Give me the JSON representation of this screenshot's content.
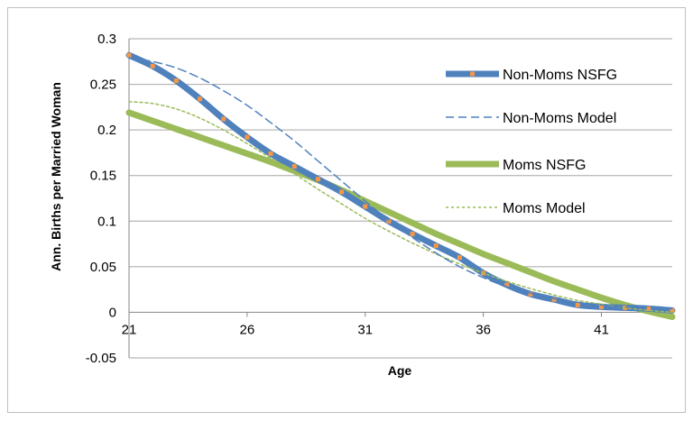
{
  "chart_data": {
    "type": "line",
    "xlabel": "Age",
    "ylabel": "Ann. Births per Married Woman",
    "xlim": [
      21,
      44
    ],
    "ylim": [
      -0.05,
      0.3
    ],
    "xticks": [
      21,
      26,
      31,
      36,
      41
    ],
    "yticks": [
      -0.05,
      0,
      0.05,
      0.1,
      0.15,
      0.2,
      0.25,
      0.3
    ],
    "ytick_labels": [
      "-0.05",
      "0",
      "0.05",
      "0.1",
      "0.15",
      "0.2",
      "0.25",
      "0.3"
    ],
    "grid": "horizontal",
    "legend_position": "right",
    "series": [
      {
        "name": "Non-Moms NSFG",
        "style": "thick-solid-with-markers",
        "color": "#4f81bd",
        "marker_color": "#f79646",
        "x": [
          21,
          22,
          23,
          24,
          25,
          26,
          27,
          28,
          29,
          30,
          31,
          32,
          33,
          34,
          35,
          36,
          37,
          38,
          39,
          40,
          41,
          42,
          43,
          44
        ],
        "y": [
          0.282,
          0.27,
          0.254,
          0.234,
          0.212,
          0.192,
          0.174,
          0.16,
          0.146,
          0.132,
          0.116,
          0.1,
          0.086,
          0.073,
          0.06,
          0.043,
          0.03,
          0.02,
          0.014,
          0.008,
          0.006,
          0.005,
          0.004,
          0.002
        ]
      },
      {
        "name": "Non-Moms Model",
        "style": "dashed",
        "color": "#4f81bd",
        "x": [
          21,
          22,
          23,
          24,
          25,
          26,
          27,
          28,
          29,
          30,
          31,
          32,
          33,
          34,
          35,
          36,
          37,
          38,
          39,
          40,
          41,
          42,
          43,
          44
        ],
        "y": [
          0.279,
          0.275,
          0.268,
          0.257,
          0.243,
          0.227,
          0.208,
          0.188,
          0.166,
          0.144,
          0.122,
          0.101,
          0.082,
          0.065,
          0.05,
          0.038,
          0.028,
          0.021,
          0.015,
          0.011,
          0.008,
          0.006,
          0.005,
          0.004
        ]
      },
      {
        "name": "Moms NSFG",
        "style": "thick-solid",
        "color": "#9bbb59",
        "x": [
          21,
          22,
          23,
          24,
          25,
          26,
          27,
          28,
          29,
          30,
          31,
          32,
          33,
          34,
          35,
          36,
          37,
          38,
          39,
          40,
          41,
          42,
          43,
          44
        ],
        "y": [
          0.219,
          0.21,
          0.201,
          0.192,
          0.183,
          0.174,
          0.165,
          0.155,
          0.145,
          0.134,
          0.122,
          0.11,
          0.098,
          0.086,
          0.075,
          0.064,
          0.054,
          0.044,
          0.034,
          0.025,
          0.016,
          0.008,
          0.001,
          -0.005
        ]
      },
      {
        "name": "Moms Model",
        "style": "dotted",
        "color": "#9bbb59",
        "x": [
          21,
          22,
          23,
          24,
          25,
          26,
          27,
          28,
          29,
          30,
          31,
          32,
          33,
          34,
          35,
          36,
          37,
          38,
          39,
          40,
          41,
          42,
          43,
          44
        ],
        "y": [
          0.231,
          0.229,
          0.223,
          0.213,
          0.2,
          0.185,
          0.169,
          0.152,
          0.135,
          0.119,
          0.103,
          0.089,
          0.076,
          0.064,
          0.053,
          0.043,
          0.034,
          0.026,
          0.019,
          0.013,
          0.009,
          0.005,
          0.002,
          0.0
        ]
      }
    ]
  }
}
